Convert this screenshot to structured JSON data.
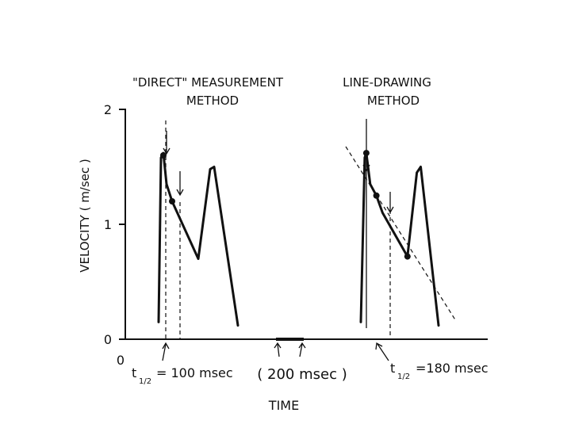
{
  "chart_data": {
    "type": "line",
    "title_left_line1": "\"DIRECT\" MEASUREMENT",
    "title_left_line2": "METHOD",
    "title_right_line1": "LINE-DRAWING",
    "title_right_line2": "METHOD",
    "ylabel": "VELOCITY  ( m/sec )",
    "xlabel": "TIME",
    "y_ticks": [
      "0",
      "1",
      "2"
    ],
    "x_origin_label": "0",
    "ylim": [
      0,
      2
    ],
    "scale_bar_label": "( 200  msec )",
    "annotation_left": "= 100 msec",
    "annotation_right": "=180 msec",
    "t_half_main": "t",
    "t_half_sub": "1/2",
    "series": [
      {
        "points": [
          [
            0,
            0.15
          ],
          [
            0.03,
            1.58
          ],
          [
            0.06,
            1.62
          ],
          [
            0.1,
            1.35
          ],
          [
            0.17,
            1.2
          ],
          [
            0.5,
            0.7
          ],
          [
            0.65,
            1.48
          ],
          [
            0.7,
            1.5
          ],
          [
            1.0,
            0.12
          ]
        ]
      },
      {
        "points": [
          [
            0,
            0.15
          ],
          [
            0.05,
            1.58
          ],
          [
            0.07,
            1.62
          ],
          [
            0.12,
            1.35
          ],
          [
            0.2,
            1.25
          ],
          [
            0.28,
            1.1
          ],
          [
            0.6,
            0.72
          ],
          [
            0.72,
            1.45
          ],
          [
            0.77,
            1.5
          ],
          [
            1.0,
            0.12
          ]
        ]
      }
    ],
    "highlighted_points": [
      [
        0.06,
        1.6
      ],
      [
        0.17,
        1.2
      ],
      [
        0.07,
        1.62
      ],
      [
        0.2,
        1.25
      ],
      [
        0.6,
        0.72
      ]
    ]
  }
}
